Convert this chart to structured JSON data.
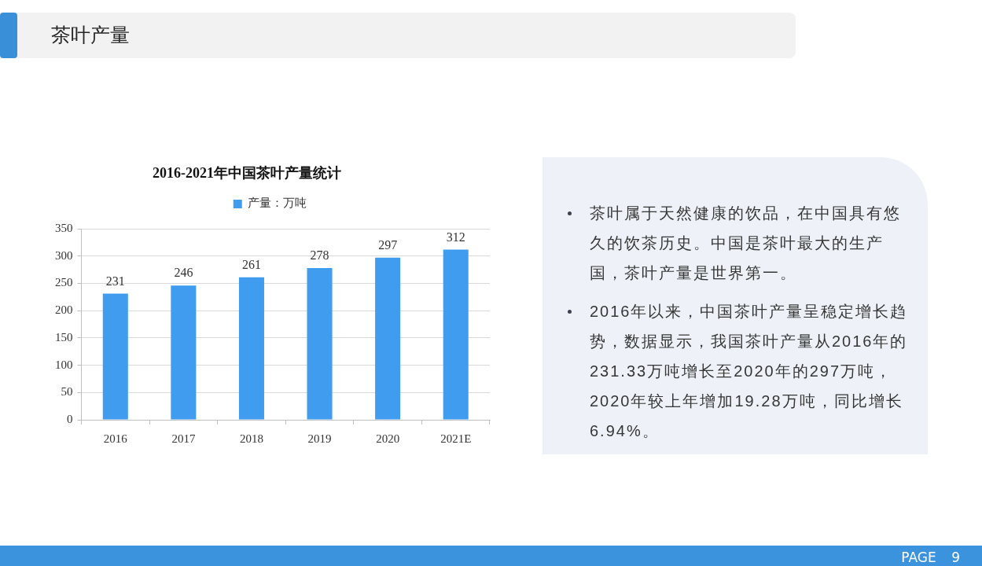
{
  "chart_data": [
    {
      "type": "other",
      "title": "茶叶产量",
      "annotations": [
        "PAGE 9"
      ]
    },
    {
      "type": "bar",
      "title": "2016-2021年中国茶叶产量统计",
      "categories": [
        "2016",
        "2017",
        "2018",
        "2019",
        "2020",
        "2021E"
      ],
      "series": [
        {
          "name": "产量：万吨",
          "color": "#3f9cef",
          "values": [
            231,
            246,
            261,
            278,
            297,
            312
          ]
        }
      ],
      "ylim": [
        0,
        350
      ],
      "yticks": [
        0,
        50,
        100,
        150,
        200,
        250,
        300,
        350
      ],
      "grid": "y",
      "legend": "top",
      "data_labels": true
    },
    {
      "type": "other",
      "annotations": [
        "茶叶属于天然健康的饮品，在中国具有悠久的饮茶历史。中国是茶叶最大的生产国，茶叶产量是世界第一。",
        "2016年以来，中国茶叶产量呈稳定增长趋势，数据显示，我国茶叶产量从2016年的231.33万吨增长至2020年的297万吨，2020年较上年增加19.28万吨，同比增长6.94%。"
      ]
    }
  ]
}
